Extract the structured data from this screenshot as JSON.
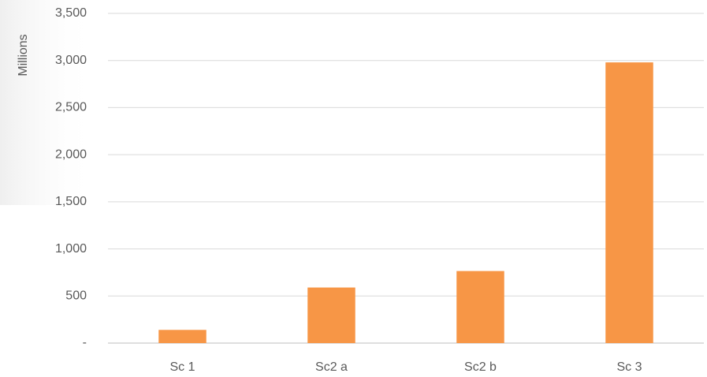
{
  "chart_data": {
    "type": "bar",
    "y_label": "Millions",
    "categories": [
      "Sc 1",
      "Sc2 a",
      "Sc2 b",
      "Sc 3"
    ],
    "values": [
      140,
      590,
      765,
      2980
    ],
    "color": "#f79646",
    "ylim": [
      0,
      3500
    ],
    "yticks": [
      {
        "value": 0,
        "label": "-"
      },
      500,
      {
        "value": 1000,
        "label": "1,000"
      },
      {
        "value": 1500,
        "label": "1,500"
      },
      {
        "value": 2000,
        "label": "2,000"
      },
      {
        "value": 2500,
        "label": "2,500"
      },
      {
        "value": 3000,
        "label": "3,000"
      },
      {
        "value": 3500,
        "label": "3,500"
      }
    ],
    "grid": true
  }
}
